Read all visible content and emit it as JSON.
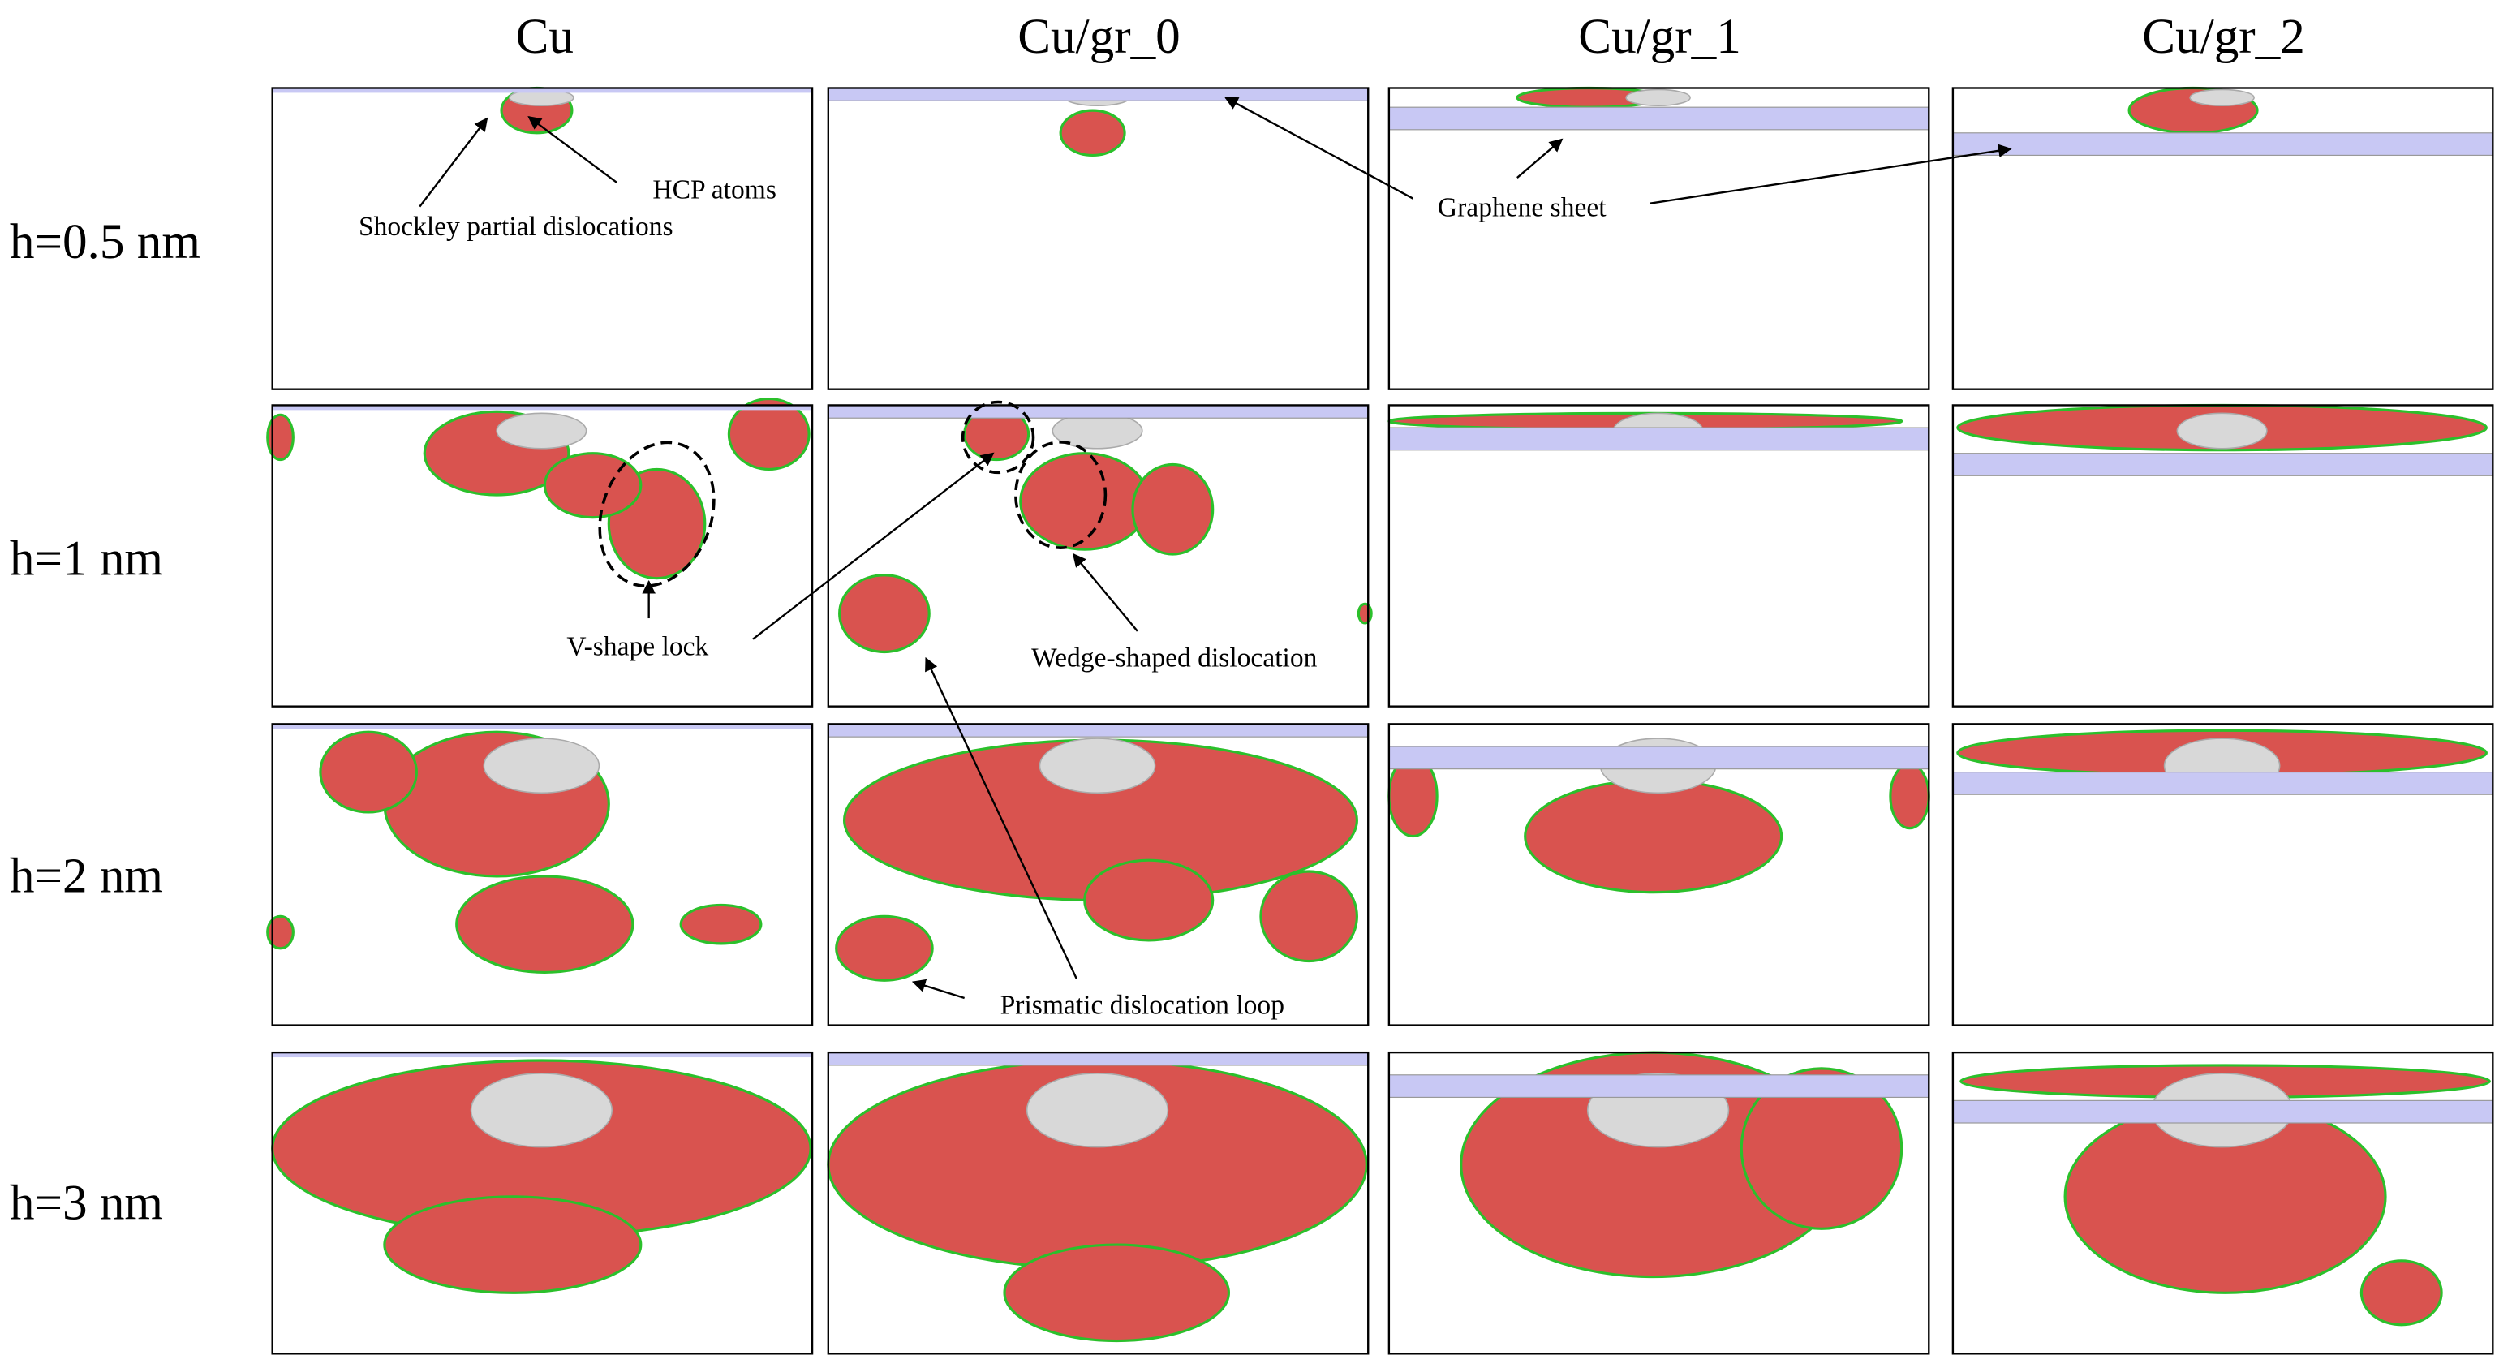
{
  "columns": [
    "Cu",
    "Cu/gr_0",
    "Cu/gr_1",
    "Cu/gr_2"
  ],
  "rows": [
    "h=0.5 nm",
    "h=1 nm",
    "h=2 nm",
    "h=3 nm"
  ],
  "annotations": {
    "shockley": "Shockley partial dislocations",
    "hcp": "HCP atoms",
    "graphene": "Graphene sheet",
    "v_shape": "V-shape lock",
    "wedge": "Wedge-shaped dislocation",
    "prismatic": "Prismatic dislocation loop"
  }
}
